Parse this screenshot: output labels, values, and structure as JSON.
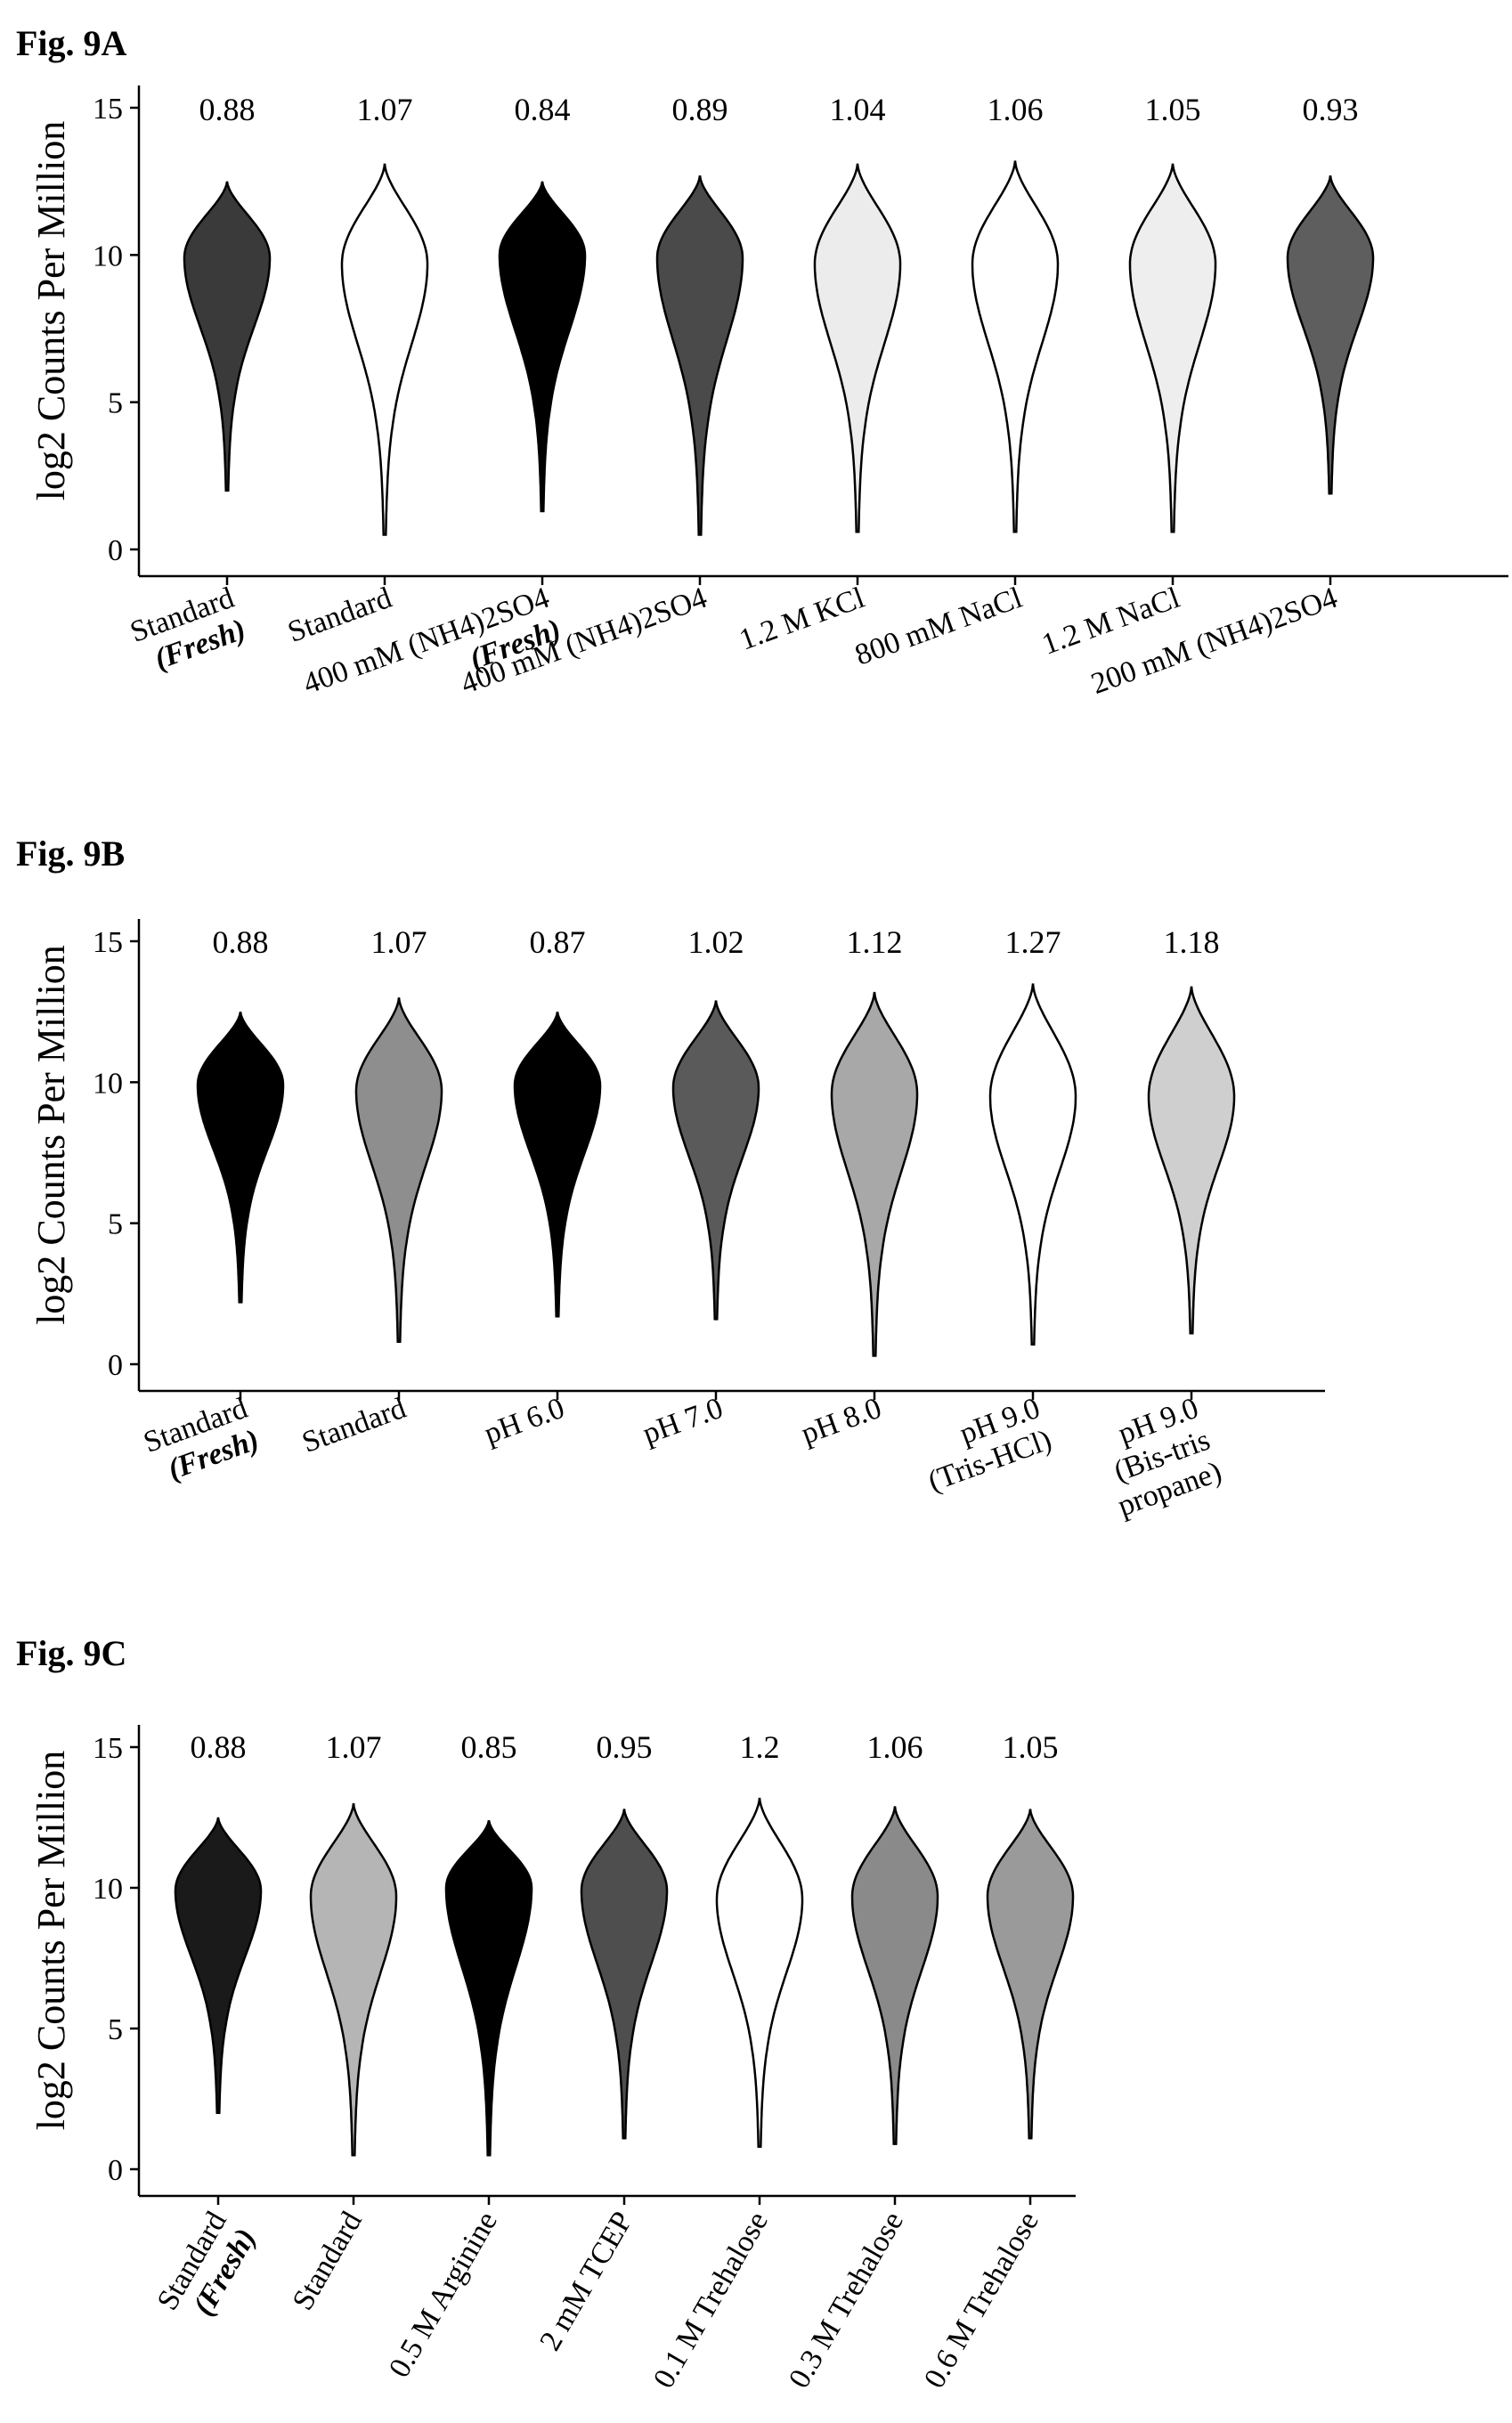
{
  "chart_data": [
    {
      "type": "violin",
      "title": "Fig. 9A",
      "ylabel": "log2 Counts Per Million",
      "ylim": [
        0,
        15
      ],
      "yticks": [
        0,
        5,
        10,
        15
      ],
      "grid": false,
      "categories": [
        [
          "Standard",
          "(Fresh)"
        ],
        [
          "Standard"
        ],
        [
          "400 mM (NH4)2SO4",
          "(Fresh)"
        ],
        [
          "400 mM (NH4)2SO4"
        ],
        [
          "1.2 M KCl"
        ],
        [
          "800 mM NaCl"
        ],
        [
          "1.2 M NaCl"
        ],
        [
          "200 mM (NH4)2SO4"
        ]
      ],
      "annotations": [
        "0.88",
        "1.07",
        "0.84",
        "0.89",
        "1.04",
        "1.06",
        "1.05",
        "0.93"
      ],
      "violins": [
        {
          "min": 2.0,
          "max": 12.5,
          "median": 9.9,
          "fill": "#3a3a3a"
        },
        {
          "min": 0.5,
          "max": 13.1,
          "median": 9.7,
          "fill": "#ffffff"
        },
        {
          "min": 1.3,
          "max": 12.5,
          "median": 10.0,
          "fill": "#000000"
        },
        {
          "min": 0.5,
          "max": 12.7,
          "median": 9.9,
          "fill": "#4a4a4a"
        },
        {
          "min": 0.6,
          "max": 13.1,
          "median": 9.7,
          "fill": "#ececec"
        },
        {
          "min": 0.6,
          "max": 13.2,
          "median": 9.7,
          "fill": "#ffffff"
        },
        {
          "min": 0.6,
          "max": 13.1,
          "median": 9.7,
          "fill": "#eeeeee"
        },
        {
          "min": 1.9,
          "max": 12.7,
          "median": 9.9,
          "fill": "#5e5e5e"
        }
      ]
    },
    {
      "type": "violin",
      "title": "Fig. 9B",
      "ylabel": "log2 Counts Per Million",
      "ylim": [
        0,
        15
      ],
      "yticks": [
        0,
        5,
        10,
        15
      ],
      "grid": false,
      "categories": [
        [
          "Standard",
          "(Fresh)"
        ],
        [
          "Standard"
        ],
        [
          "pH 6.0"
        ],
        [
          "pH 7.0"
        ],
        [
          "pH 8.0"
        ],
        [
          "pH 9.0",
          "(Tris-HCl)"
        ],
        [
          "pH 9.0",
          "(Bis-tris",
          "propane)"
        ]
      ],
      "annotations": [
        "0.88",
        "1.07",
        "0.87",
        "1.02",
        "1.12",
        "1.27",
        "1.18"
      ],
      "violins": [
        {
          "min": 2.2,
          "max": 12.5,
          "median": 9.9,
          "fill": "#000000"
        },
        {
          "min": 0.8,
          "max": 13.0,
          "median": 9.7,
          "fill": "#8e8e8e"
        },
        {
          "min": 1.7,
          "max": 12.5,
          "median": 9.9,
          "fill": "#000000"
        },
        {
          "min": 1.6,
          "max": 12.9,
          "median": 9.8,
          "fill": "#5a5a5a"
        },
        {
          "min": 0.3,
          "max": 13.2,
          "median": 9.6,
          "fill": "#a8a8a8"
        },
        {
          "min": 0.7,
          "max": 13.5,
          "median": 9.5,
          "fill": "#ffffff"
        },
        {
          "min": 1.1,
          "max": 13.4,
          "median": 9.5,
          "fill": "#cfcfcf"
        }
      ]
    },
    {
      "type": "violin",
      "title": "Fig. 9C",
      "ylabel": "log2 Counts Per Million",
      "ylim": [
        0,
        15
      ],
      "yticks": [
        0,
        5,
        10,
        15
      ],
      "grid": false,
      "categories": [
        [
          "Standard",
          "(Fresh)"
        ],
        [
          "Standard"
        ],
        [
          "0.5 M Arginine"
        ],
        [
          "2 mM TCEP"
        ],
        [
          "0.1 M Trehalose"
        ],
        [
          "0.3 M Trehalose"
        ],
        [
          "0.6 M Trehalose"
        ]
      ],
      "annotations": [
        "0.88",
        "1.07",
        "0.85",
        "0.95",
        "1.2",
        "1.06",
        "1.05"
      ],
      "violins": [
        {
          "min": 2.0,
          "max": 12.5,
          "median": 9.9,
          "fill": "#1a1a1a"
        },
        {
          "min": 0.5,
          "max": 13.0,
          "median": 9.7,
          "fill": "#b5b5b5"
        },
        {
          "min": 0.5,
          "max": 12.4,
          "median": 10.0,
          "fill": "#000000"
        },
        {
          "min": 1.1,
          "max": 12.8,
          "median": 9.9,
          "fill": "#4e4e4e"
        },
        {
          "min": 0.8,
          "max": 13.2,
          "median": 9.6,
          "fill": "#ffffff"
        },
        {
          "min": 0.9,
          "max": 12.9,
          "median": 9.7,
          "fill": "#8a8a8a"
        },
        {
          "min": 1.1,
          "max": 12.8,
          "median": 9.7,
          "fill": "#9a9a9a"
        }
      ]
    }
  ]
}
